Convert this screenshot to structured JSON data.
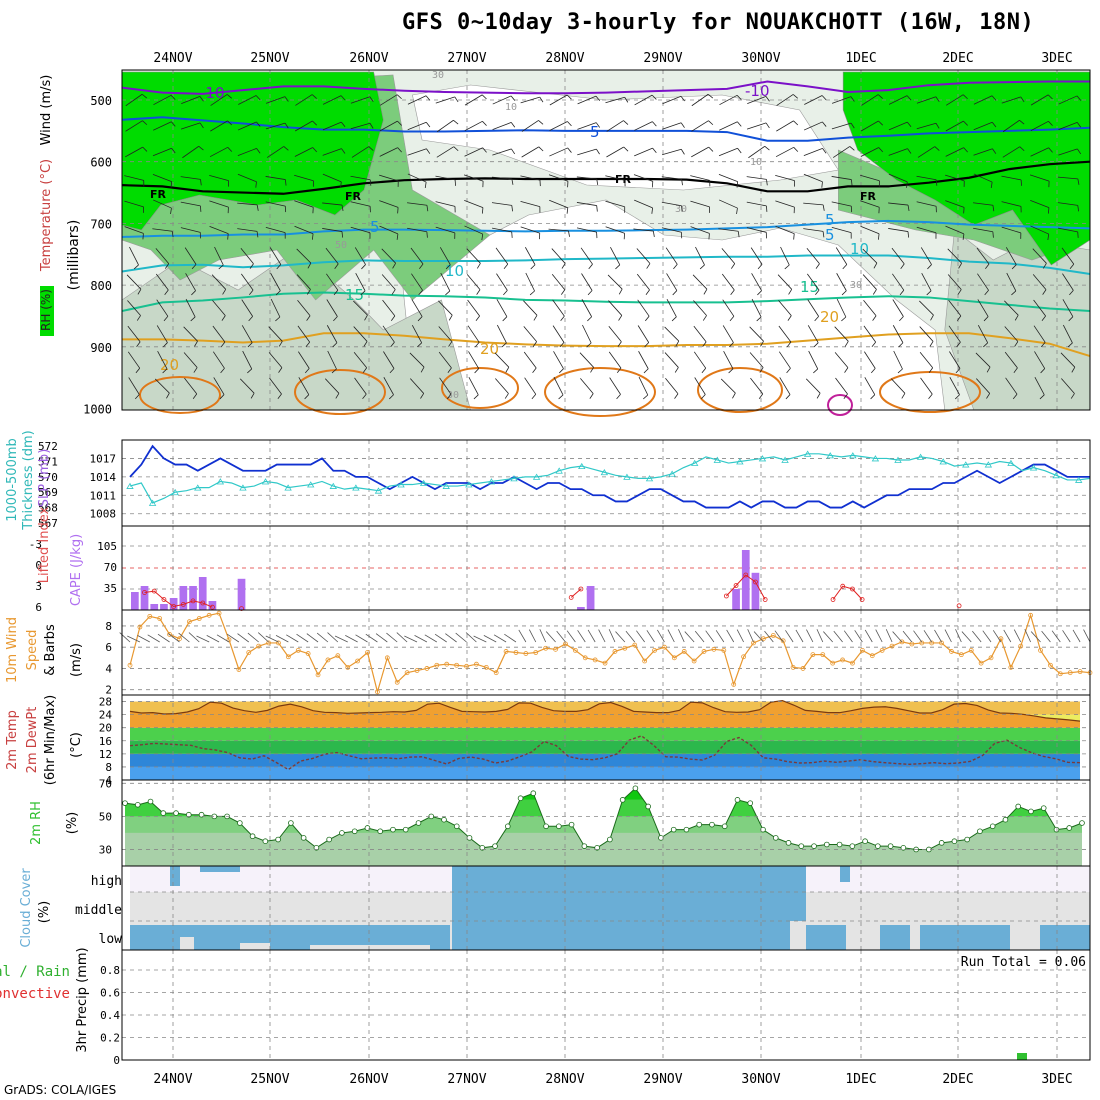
{
  "title": "GFS 0~10day 3-hourly for NOUAKCHOTT (16W, 18N)",
  "credit": "GrADS: COLA/IGES",
  "dates": [
    "24NOV",
    "25NOV",
    "26NOV",
    "27NOV",
    "28NOV",
    "29NOV",
    "30NOV",
    "1DEC",
    "2DEC",
    "3DEC"
  ],
  "colors": {
    "rh_dark": "#00dc00",
    "rh_mid": "#7ccc7c",
    "rh_light": "#c8d8c8",
    "rh_faint": "#e8f0e8",
    "temp_cold": "#7b10c8",
    "temp_m5": "#1050d8",
    "temp_fr": "#000000",
    "temp_5": "#1890e0",
    "temp_10": "#20b8c8",
    "temp_15": "#18c090",
    "temp_20": "#e0a020",
    "temp_25": "#e07818",
    "slp": "#1030d0",
    "thickness": "#30c8c8",
    "cape": "#b070f0",
    "li": "#e02020",
    "wind10": "#e89830",
    "temp2m": "#f0a030",
    "rh2m": "#30c830",
    "cloud": "#6aaed6",
    "precip": "#30c030"
  },
  "panels": {
    "profile": {
      "axis_title": "(millibars)",
      "left_labels": [
        "RH (%)",
        "Temperature (°C)",
        "Wind (m/s)"
      ],
      "levels": [
        "500",
        "600",
        "700",
        "800",
        "900",
        "1000"
      ],
      "contour_labels": [
        "-10",
        "-10",
        "5",
        "5",
        "FR",
        "FR",
        "FR",
        "FR",
        "5",
        "5",
        "10",
        "10",
        "15",
        "15",
        "20",
        "20",
        "20"
      ],
      "small_labels": [
        "30",
        "10",
        "10",
        "30",
        "50",
        "30",
        "30"
      ],
      "isotherms": [
        {
          "name": "-10",
          "color": "#7b10c8",
          "y": [
            480,
            488,
            490,
            484,
            478,
            478,
            482,
            485,
            487,
            488,
            489,
            489,
            488,
            486,
            484,
            482,
            470,
            478,
            487,
            484,
            476,
            472,
            471,
            470,
            470
          ]
        },
        {
          "name": "-5",
          "color": "#1050d8",
          "y": [
            532,
            528,
            533,
            538,
            544,
            548,
            548,
            551,
            551,
            550,
            549,
            550,
            550,
            550,
            550,
            552,
            566,
            566,
            561,
            558,
            554,
            552,
            550,
            548,
            545
          ]
        },
        {
          "name": "FR",
          "color": "#000000",
          "y": [
            638,
            640,
            648,
            650,
            652,
            644,
            635,
            630,
            628,
            627,
            628,
            628,
            628,
            628,
            629,
            635,
            648,
            648,
            640,
            640,
            634,
            626,
            612,
            604,
            600
          ]
        },
        {
          "name": "5",
          "color": "#1890e0",
          "y": [
            722,
            720,
            720,
            718,
            718,
            713,
            710,
            710,
            711,
            712,
            713,
            712,
            712,
            711,
            710,
            708,
            706,
            702,
            698,
            696,
            698,
            702,
            704,
            706,
            708
          ]
        },
        {
          "name": "10",
          "color": "#20b8c8",
          "y": [
            778,
            768,
            767,
            771,
            768,
            763,
            760,
            761,
            761,
            761,
            760,
            758,
            757,
            756,
            755,
            754,
            754,
            752,
            752,
            752,
            756,
            762,
            765,
            772,
            782
          ]
        },
        {
          "name": "15",
          "color": "#18c090",
          "y": [
            842,
            828,
            825,
            820,
            814,
            812,
            814,
            817,
            818,
            820,
            824,
            825,
            827,
            828,
            828,
            828,
            826,
            823,
            820,
            818,
            820,
            826,
            832,
            838,
            842
          ]
        },
        {
          "name": "20",
          "color": "#e0a020",
          "y": [
            888,
            888,
            890,
            893,
            890,
            878,
            878,
            882,
            888,
            893,
            896,
            898,
            899,
            899,
            897,
            897,
            895,
            890,
            885,
            880,
            878,
            878,
            886,
            895,
            915
          ]
        }
      ]
    },
    "slp": {
      "left_labels": [
        "1000-500mb",
        "Thickness (dm)",
        "SLP (mb)"
      ],
      "thickness_ticks": [
        "572",
        "571",
        "570",
        "569",
        "568",
        "567"
      ],
      "slp_ticks": [
        "1017",
        "1014",
        "1011",
        "1008"
      ],
      "slp_range": [
        1006,
        1020
      ],
      "thickness_range": [
        566.8,
        572.4
      ],
      "slp_values": [
        1014,
        1016,
        1019,
        1017,
        1016,
        1016,
        1015,
        1016,
        1017,
        1016,
        1015,
        1015,
        1015,
        1016,
        1016,
        1016,
        1016,
        1017,
        1015,
        1015,
        1014,
        1014,
        1013,
        1012,
        1013,
        1014,
        1013,
        1012,
        1013,
        1013,
        1013,
        1012,
        1013,
        1013,
        1014,
        1013,
        1012,
        1013,
        1013,
        1012,
        1012,
        1011,
        1011,
        1010,
        1010,
        1011,
        1012,
        1012,
        1011,
        1010,
        1010,
        1009,
        1009,
        1009,
        1010,
        1009,
        1010,
        1010,
        1009,
        1009,
        1010,
        1010,
        1009,
        1009,
        1010,
        1009,
        1010,
        1011,
        1011,
        1012,
        1012,
        1012,
        1013,
        1013,
        1014,
        1015,
        1014,
        1013,
        1014,
        1015,
        1016,
        1016,
        1015,
        1014,
        1014,
        1014
      ],
      "thickness_values": [
        569.4,
        569.6,
        568.3,
        568.6,
        569.0,
        569.1,
        569.3,
        569.3,
        569.7,
        569.6,
        569.3,
        569.4,
        569.7,
        569.6,
        569.3,
        569.4,
        569.5,
        569.7,
        569.4,
        569.2,
        569.3,
        569.2,
        569.1,
        569.4,
        569.5,
        569.5,
        569.6,
        569.5,
        569.4,
        569.4,
        569.5,
        569.6,
        569.7,
        569.8,
        569.9,
        570.0,
        570.0,
        570.1,
        570.4,
        570.6,
        570.7,
        570.5,
        570.3,
        570.1,
        570.0,
        569.9,
        569.9,
        570.0,
        570.2,
        570.6,
        570.9,
        571.3,
        571.1,
        570.9,
        571.0,
        571.1,
        571.2,
        571.3,
        571.1,
        571.3,
        571.5,
        571.5,
        571.4,
        571.3,
        571.4,
        571.3,
        571.2,
        571.2,
        571.1,
        571.1,
        571.3,
        571.2,
        571.0,
        570.7,
        570.8,
        570.9,
        570.8,
        571.0,
        570.9,
        570.4,
        570.6,
        570.4,
        570.1,
        569.8,
        569.8,
        569.9
      ]
    },
    "cape": {
      "left_labels": [
        "Lifted Index",
        "CAPE (J/kg)"
      ],
      "li_ticks": [
        "-3",
        "0",
        "3",
        "6"
      ],
      "cape_ticks": [
        "105",
        "70",
        "35"
      ],
      "cape_values": [
        30,
        40,
        10,
        10,
        20,
        40,
        40,
        55,
        15,
        0,
        0,
        52,
        0,
        0,
        0,
        0,
        0,
        0,
        0,
        0,
        0,
        0,
        0,
        0,
        0,
        0,
        0,
        0,
        0,
        0,
        0,
        0,
        0,
        0,
        0,
        0,
        0,
        0,
        0,
        0,
        0,
        0,
        0,
        0,
        0,
        0,
        5,
        40,
        0,
        0,
        0,
        0,
        0,
        0,
        0,
        0,
        0,
        0,
        0,
        0,
        0,
        0,
        35,
        100,
        62,
        0,
        0,
        0,
        0,
        0,
        0,
        0,
        0,
        0,
        0,
        0,
        0,
        0,
        0,
        0,
        0,
        0,
        0,
        0,
        0,
        0,
        0,
        0,
        0,
        0,
        0,
        0,
        0,
        0,
        0,
        0,
        0,
        0,
        0
      ],
      "li_values": [
        null,
        3.5,
        3.3,
        4.5,
        5.5,
        5.2,
        4.7,
        5.0,
        5.6,
        null,
        null,
        5.8,
        null,
        null,
        null,
        null,
        null,
        null,
        null,
        null,
        null,
        null,
        null,
        null,
        null,
        null,
        null,
        null,
        null,
        null,
        null,
        null,
        null,
        null,
        null,
        null,
        null,
        null,
        null,
        null,
        null,
        null,
        null,
        null,
        null,
        4.2,
        3.0,
        null,
        null,
        null,
        null,
        null,
        null,
        null,
        null,
        null,
        null,
        null,
        null,
        null,
        null,
        4.0,
        2.5,
        1.0,
        2.0,
        4.5,
        null,
        null,
        null,
        null,
        null,
        null,
        4.5,
        2.6,
        3.0,
        4.5,
        null,
        null,
        null,
        null,
        null,
        null,
        null,
        null,
        null,
        5.4,
        null,
        null,
        null,
        null,
        null,
        null,
        null,
        null,
        null,
        null,
        null,
        null
      ]
    },
    "wind": {
      "left_labels": [
        "10m Wind",
        "Speed",
        "& Barbs"
      ],
      "axis_title": "(m/s)",
      "ticks": [
        "8",
        "6",
        "4",
        "2"
      ],
      "values": [
        4.3,
        7.9,
        8.9,
        8.7,
        7.2,
        6.8,
        8.4,
        8.7,
        9.0,
        9.2,
        6.7,
        3.9,
        5.5,
        6.1,
        6.4,
        6.4,
        5.1,
        5.7,
        5.4,
        3.4,
        4.8,
        5.2,
        4.1,
        4.7,
        5.5,
        1.8,
        5.0,
        2.7,
        3.6,
        3.8,
        4.0,
        4.3,
        4.4,
        4.3,
        4.2,
        4.4,
        4.1,
        3.6,
        5.6,
        5.5,
        5.4,
        5.5,
        5.9,
        5.8,
        6.3,
        5.7,
        5.0,
        4.8,
        4.5,
        5.6,
        5.9,
        6.2,
        4.7,
        5.7,
        6.0,
        5.0,
        5.6,
        4.7,
        5.6,
        5.8,
        5.7,
        2.5,
        5.1,
        6.4,
        6.8,
        7.1,
        6.6,
        4.1,
        4.0,
        5.3,
        5.3,
        4.5,
        4.8,
        4.5,
        5.7,
        5.2,
        5.7,
        6.1,
        6.5,
        6.3,
        6.4,
        6.4,
        6.4,
        5.6,
        5.3,
        5.7,
        4.5,
        5.0,
        6.8,
        4.1,
        6.1,
        9.0,
        5.7,
        4.3,
        3.5,
        3.6,
        3.7,
        3.6
      ]
    },
    "temp2m": {
      "left_labels": [
        "2m Temp",
        "2m DewPt",
        "(6hr Min/Max)"
      ],
      "axis_title": "(°C)",
      "ticks": [
        "28",
        "24",
        "20",
        "16",
        "12",
        "8",
        "4"
      ],
      "temp_values": [
        25,
        24.5,
        24.6,
        24.2,
        24.3,
        24.8,
        25.8,
        27.8,
        27.5,
        26,
        25.2,
        24.7,
        25.3,
        26.6,
        27.2,
        26.4,
        25.2,
        24.7,
        24.6,
        24.4,
        24.5,
        24.6,
        24.7,
        24.9,
        24.8,
        25.3,
        27.2,
        27.5,
        26.2,
        25.0,
        24.9,
        24.8,
        25.0,
        25.6,
        27.6,
        27.5,
        26.2,
        25.2,
        25.0,
        25.0,
        25.5,
        27.3,
        27.7,
        26.5,
        25.0,
        24.8,
        24.6,
        24.6,
        25.3,
        27.8,
        27.6,
        26.1,
        24.9,
        24.7,
        24.8,
        25.5,
        27.8,
        28.3,
        26.9,
        25.3,
        25.0,
        24.6,
        24.6,
        25.2,
        25.9,
        26.3,
        26.4,
        25.9,
        25.2,
        24.5,
        24.5,
        25.5,
        27.2,
        27.4,
        26.8,
        25.4,
        24.5,
        24.4,
        24.1,
        23.6,
        23.0,
        22.7,
        22.4,
        22.0
      ],
      "dew_values": [
        14.5,
        14.8,
        15.2,
        15.0,
        14.8,
        14.6,
        13.6,
        13.2,
        12.4,
        10.8,
        10.4,
        11.4,
        9.4,
        7.2,
        9.8,
        10.6,
        11.9,
        12.4,
        11.4,
        10.5,
        10.7,
        10.8,
        10.5,
        11.0,
        11.1,
        10.0,
        8.9,
        10.6,
        11.0,
        10.4,
        9.2,
        9.8,
        11.1,
        12.6,
        15.8,
        14.5,
        11.2,
        10.4,
        10.2,
        10.8,
        12.0,
        16.2,
        17.5,
        14.6,
        11.1,
        11.0,
        10.4,
        10.1,
        11.6,
        15.8,
        17.0,
        14.6,
        10.8,
        10.4,
        9.6,
        9.2,
        9.3,
        9.8,
        9.4,
        9.8,
        10.2,
        9.6,
        9.3,
        9.0,
        8.8,
        9.0,
        9.3,
        9.0,
        9.2,
        9.7,
        11.5,
        15.2,
        16.2,
        14.0,
        12.4,
        11.2,
        10.5,
        9.4,
        9.3
      ]
    },
    "rh2m": {
      "label": "2m RH",
      "axis_title": "(%)",
      "ticks": [
        "70",
        "50",
        "30"
      ],
      "values": [
        58,
        57,
        59,
        52,
        52,
        51,
        51,
        50,
        50,
        46,
        38,
        35,
        36,
        46,
        37,
        31,
        36,
        40,
        41,
        43,
        41,
        42,
        42,
        46,
        50,
        48,
        44,
        37,
        31,
        32,
        44,
        61,
        64,
        44,
        44,
        45,
        32,
        31,
        36,
        60,
        67,
        56,
        37,
        42,
        42,
        45,
        45,
        44,
        60,
        58,
        42,
        37,
        34,
        32,
        32,
        33,
        33,
        32,
        35,
        32,
        32,
        31,
        30,
        30,
        34,
        35,
        36,
        41,
        44,
        48,
        56,
        53,
        55,
        42,
        43,
        46
      ]
    },
    "cloud": {
      "left_label": "Cloud Cover",
      "axis_title": "(%)",
      "levels": [
        "high",
        "middle",
        "low"
      ]
    },
    "precip": {
      "left_labels": [
        "Total / Rain",
        "Convective"
      ],
      "axis_title": "3hr Precip (mm)",
      "ticks": [
        "0.8",
        "0.6",
        "0.4",
        "0.2",
        "0"
      ],
      "run_total": "Run Total = 0.06"
    }
  },
  "chart_data": [
    {
      "type": "heatmap",
      "title": "GFS 0~10day 3-hourly for NOUAKCHOTT (16W, 18N)",
      "ylabel": "millibars",
      "yticks": [
        500,
        600,
        700,
        800,
        900,
        1000
      ],
      "x": [
        "24NOV",
        "25NOV",
        "26NOV",
        "27NOV",
        "28NOV",
        "29NOV",
        "30NOV",
        "1DEC",
        "2DEC",
        "3DEC"
      ],
      "contours": [
        "RH (%)",
        "Temperature (°C)",
        "Wind (m/s)"
      ]
    },
    {
      "type": "line",
      "ylabel": "SLP (mb)",
      "ylim": [
        1006,
        1020
      ],
      "series": [
        {
          "name": "SLP"
        },
        {
          "name": "1000-500mb Thickness"
        }
      ]
    },
    {
      "type": "bar",
      "ylabel": "CAPE (J/kg)",
      "ylim": [
        0,
        140
      ],
      "series": [
        {
          "name": "CAPE"
        },
        {
          "name": "Lifted Index"
        }
      ]
    },
    {
      "type": "line",
      "ylabel": "10m Wind Speed (m/s)",
      "ylim": [
        1.5,
        9.5
      ]
    },
    {
      "type": "area",
      "ylabel": "2m Temp / DewPt (°C)",
      "ylim": [
        4,
        30
      ]
    },
    {
      "type": "area",
      "ylabel": "2m RH (%)",
      "ylim": [
        20,
        72
      ]
    },
    {
      "type": "area",
      "ylabel": "Cloud Cover (%)",
      "categories": [
        "high",
        "middle",
        "low"
      ]
    },
    {
      "type": "bar",
      "ylabel": "3hr Precip (mm)",
      "ylim": [
        0,
        1
      ],
      "run_total": 0.06
    }
  ]
}
